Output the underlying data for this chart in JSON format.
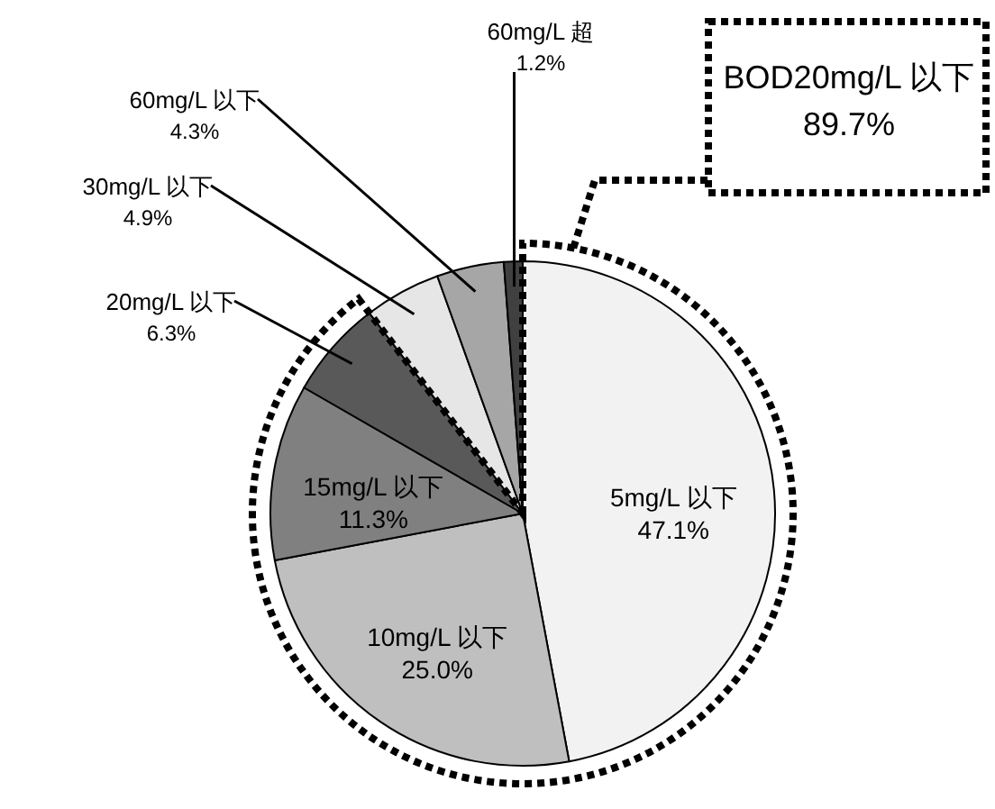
{
  "chart_data": {
    "type": "pie",
    "categories": [
      "5mg/L 以下",
      "10mg/L 以下",
      "15mg/L 以下",
      "20mg/L 以下",
      "30mg/L 以下",
      "60mg/L 以下",
      "60mg/L 超"
    ],
    "values": [
      47.1,
      25.0,
      11.3,
      6.3,
      4.9,
      4.3,
      1.2
    ],
    "value_labels": [
      "47.1%",
      "25.0%",
      "11.3%",
      "6.3%",
      "4.9%",
      "4.3%",
      "1.2%"
    ],
    "colors": [
      "#f2f2f2",
      "#bfbfbf",
      "#808080",
      "#595959",
      "#e6e6e6",
      "#a6a6a6",
      "#404040"
    ],
    "annotations": [
      "BOD20mg/L 以下89.7%"
    ]
  }
}
